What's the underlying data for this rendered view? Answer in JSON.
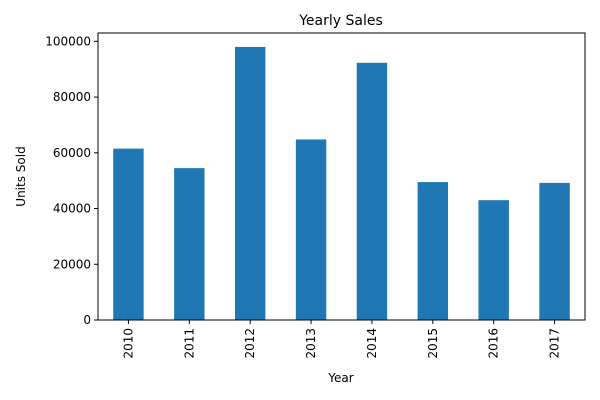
{
  "chart_data": {
    "type": "bar",
    "title": "Yearly Sales",
    "xlabel": "Year",
    "ylabel": "Units Sold",
    "categories": [
      "2010",
      "2011",
      "2012",
      "2013",
      "2014",
      "2015",
      "2016",
      "2017"
    ],
    "values": [
      61500,
      54500,
      98000,
      64800,
      92300,
      49500,
      43000,
      49200
    ],
    "ylim": [
      0,
      103000
    ],
    "yticks": [
      0,
      20000,
      40000,
      60000,
      80000,
      100000
    ],
    "bar_color": "#1f77b4",
    "grid": false,
    "legend": "none"
  }
}
